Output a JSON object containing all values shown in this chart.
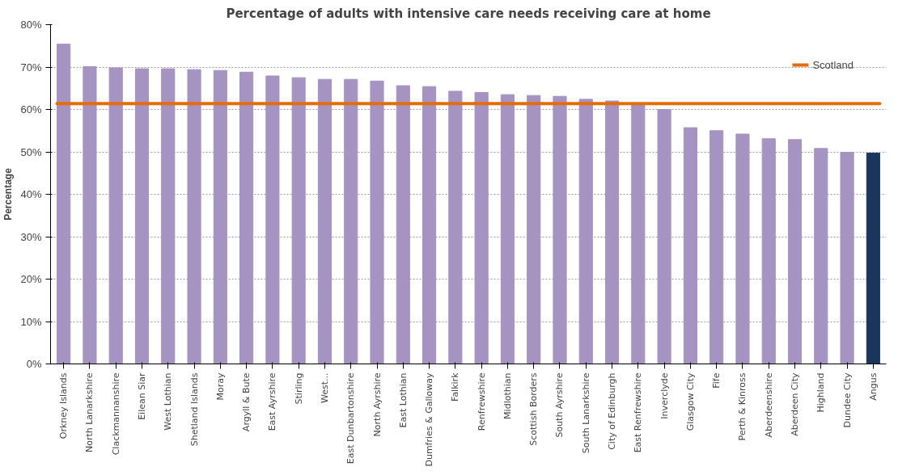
{
  "chart_data": {
    "type": "bar",
    "title": "Percentage of adults with intensive care needs receiving care at home",
    "ylabel": "Percentage",
    "categories": [
      "Orkney Islands",
      "North Lanarkshire",
      "Clackmannanshire",
      "Eilean Siar",
      "West Lothian",
      "Shetland Islands",
      "Moray",
      "Argyll & Bute",
      "East Ayrshire",
      "Stirling",
      "West...",
      "East Dunbartonshire",
      "North Ayrshire",
      "East Lothian",
      "Dumfries & Galloway",
      "Falkirk",
      "Renfrewshire",
      "Midlothian",
      "Scottish Borders",
      "South Ayrshire",
      "South Lanarkshire",
      "City of Edinburgh",
      "East Renfrewshire",
      "Inverclyde",
      "Glasgow City",
      "Fife",
      "Perth & Kinross",
      "Aberdeenshire",
      "Aberdeen City",
      "Highland",
      "Dundee City",
      "Angus"
    ],
    "values": [
      75.4,
      70.1,
      69.8,
      69.6,
      69.6,
      69.4,
      69.2,
      68.8,
      67.9,
      67.5,
      67.1,
      67.1,
      66.7,
      65.6,
      65.4,
      64.3,
      64.0,
      63.5,
      63.3,
      63.1,
      62.4,
      62.0,
      61.4,
      60.0,
      55.7,
      55.0,
      54.2,
      53.1,
      52.9,
      50.8,
      49.9,
      49.7
    ],
    "colors": [
      "#a593c2",
      "#a593c2",
      "#a593c2",
      "#a593c2",
      "#a593c2",
      "#a593c2",
      "#a593c2",
      "#a593c2",
      "#a593c2",
      "#a593c2",
      "#a593c2",
      "#a593c2",
      "#a593c2",
      "#a593c2",
      "#a593c2",
      "#a593c2",
      "#a593c2",
      "#a593c2",
      "#a593c2",
      "#a593c2",
      "#a593c2",
      "#a593c2",
      "#a593c2",
      "#a593c2",
      "#a593c2",
      "#a593c2",
      "#a593c2",
      "#a593c2",
      "#a593c2",
      "#a593c2",
      "#a593c2",
      "#1a365d"
    ],
    "ylim": [
      0,
      80
    ],
    "yticks": [
      {
        "value": 0,
        "label": "0%"
      },
      {
        "value": 10,
        "label": "10%"
      },
      {
        "value": 20,
        "label": "20%"
      },
      {
        "value": 30,
        "label": "30%"
      },
      {
        "value": 40,
        "label": "40%"
      },
      {
        "value": 50,
        "label": "50%"
      },
      {
        "value": 60,
        "label": "60%"
      },
      {
        "value": 70,
        "label": "70%"
      },
      {
        "value": 80,
        "label": "80%"
      }
    ],
    "ref_lines": [
      {
        "axis": "y",
        "value": 61.4,
        "label": "Scotland",
        "color": "#e46c0a"
      }
    ],
    "grid": "y",
    "legend": "top right"
  }
}
